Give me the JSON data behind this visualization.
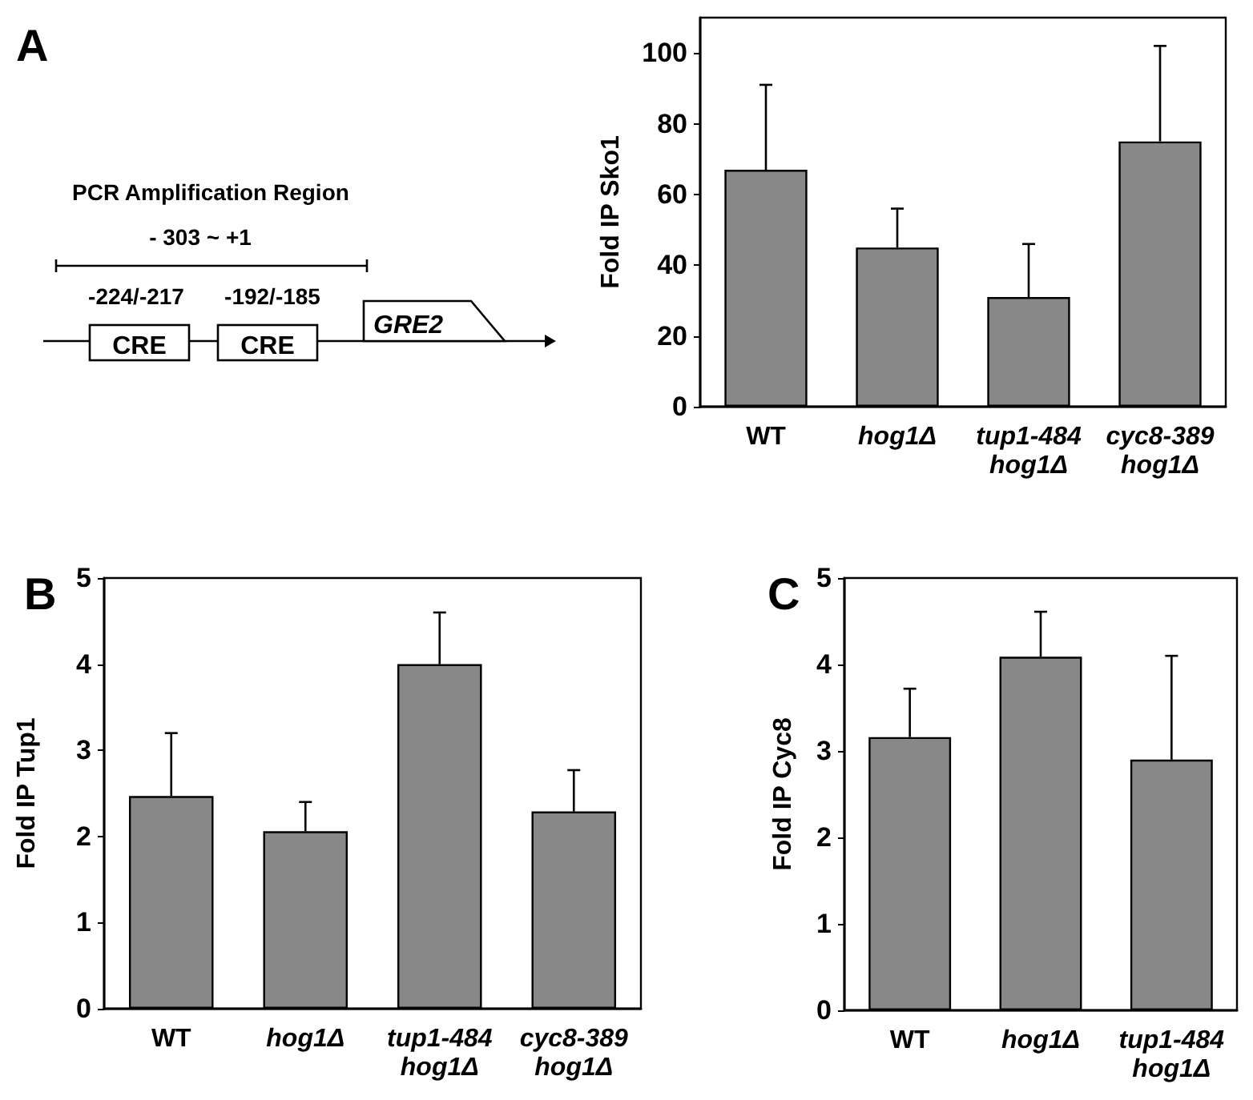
{
  "chart_data": [
    {
      "type": "other",
      "title": "A",
      "annotations": [
        "PCR Amplification Region",
        "- 303 ~ +1",
        "-224/-217",
        "-192/-185",
        "CRE",
        "CRE",
        "GRE2"
      ]
    },
    {
      "type": "bar",
      "ylabel": "Fold IP Sko1",
      "categories": [
        "WT",
        "hog1Δ",
        "tup1-484\nhog1Δ",
        "cyc8-389\nhog1Δ"
      ],
      "values": [
        67,
        45,
        31,
        75
      ],
      "errors": [
        [
          67,
          91
        ],
        [
          45,
          56
        ],
        [
          31,
          46
        ],
        [
          75,
          102
        ]
      ],
      "color": "#888888",
      "ylim": [
        0,
        110
      ],
      "yticks": [
        0,
        20,
        40,
        60,
        80,
        100
      ]
    },
    {
      "type": "bar",
      "title": "B",
      "ylabel": "Fold IP Tup1",
      "categories": [
        "WT",
        "hog1Δ",
        "tup1-484\nhog1Δ",
        "cyc8-389\nhog1Δ"
      ],
      "values": [
        2.47,
        2.06,
        4.0,
        2.29
      ],
      "errors": [
        [
          2.47,
          3.2
        ],
        [
          2.06,
          2.4
        ],
        [
          4.0,
          4.6
        ],
        [
          2.29,
          2.77
        ]
      ],
      "color": "#888888",
      "ylim": [
        0,
        5
      ],
      "yticks": [
        0,
        1,
        2,
        3,
        4,
        5
      ]
    },
    {
      "type": "bar",
      "title": "C",
      "ylabel": "Fold IP Cyc8",
      "categories": [
        "WT",
        "hog1Δ",
        "tup1-484\nhog1Δ"
      ],
      "values": [
        3.16,
        4.09,
        2.9
      ],
      "errors": [
        [
          3.16,
          3.72
        ],
        [
          4.09,
          4.61
        ],
        [
          2.9,
          4.1
        ]
      ],
      "color": "#888888",
      "ylim": [
        0,
        5
      ],
      "yticks": [
        0,
        1,
        2,
        3,
        4,
        5
      ]
    }
  ]
}
